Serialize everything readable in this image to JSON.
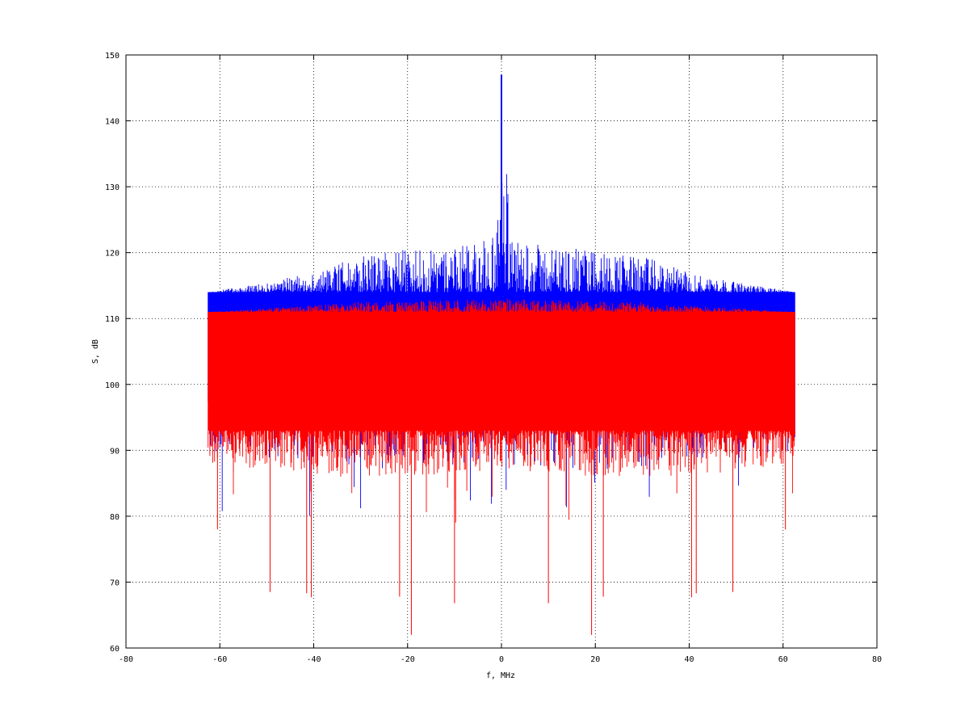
{
  "chart_data": {
    "type": "line",
    "title": "",
    "xlabel": "f, MHz",
    "ylabel": "S, dB",
    "xlim": [
      -80,
      80
    ],
    "ylim": [
      60,
      150
    ],
    "xticks": [
      -80,
      -60,
      -40,
      -20,
      0,
      20,
      40,
      60,
      80
    ],
    "yticks": [
      60,
      70,
      80,
      90,
      100,
      110,
      120,
      130,
      140,
      150
    ],
    "grid": true,
    "legend": "none",
    "x_range": [
      -62.5,
      62.5
    ],
    "series": [
      {
        "color": "#0000ff",
        "style": "dense noisy spectrum",
        "upper_envelope": {
          "x": [
            -62.5,
            -50,
            -40,
            -30,
            -20,
            -10,
            -2,
            0,
            2,
            10,
            20,
            30,
            40,
            50,
            62.5
          ],
          "y": [
            114,
            115.5,
            117,
            119.5,
            120.5,
            121,
            122,
            146.5,
            122,
            121,
            120.5,
            119.5,
            117,
            115.5,
            114
          ]
        },
        "dense_band": [
          104,
          114
        ],
        "lower_envelope": {
          "x": [
            -62.5,
            -40,
            -20,
            0,
            20,
            40,
            62.5
          ],
          "y": [
            90,
            88,
            87,
            88,
            87,
            88,
            90
          ]
        },
        "peak": {
          "x": 0,
          "y": 147
        }
      },
      {
        "color": "#ff0000",
        "style": "dense noisy spectrum",
        "dense_band": [
          93,
          111
        ],
        "upper_envelope": {
          "x": [
            -62.5,
            -30,
            0,
            30,
            62.5
          ],
          "y": [
            111,
            112.5,
            113,
            112.5,
            111
          ]
        },
        "lower_envelope": {
          "x": [
            -62.5,
            -40,
            -20,
            0,
            20,
            40,
            62.5
          ],
          "y": [
            88,
            86,
            86,
            87,
            86,
            86,
            88
          ]
        },
        "deep_dips": [
          {
            "x": -19.2,
            "y": 62
          },
          {
            "x": 19.2,
            "y": 62
          },
          {
            "x": -40.5,
            "y": 67.7
          },
          {
            "x": 40.5,
            "y": 67.7
          },
          {
            "x": -41.5,
            "y": 68.3
          },
          {
            "x": 41.5,
            "y": 68.3
          },
          {
            "x": -49.3,
            "y": 68.5
          },
          {
            "x": 49.3,
            "y": 68.5
          },
          {
            "x": -10,
            "y": 66.8
          },
          {
            "x": 10,
            "y": 66.8
          },
          {
            "x": -21.7,
            "y": 67.8
          },
          {
            "x": 21.7,
            "y": 67.8
          },
          {
            "x": -60.5,
            "y": 78
          },
          {
            "x": 60.5,
            "y": 78
          }
        ]
      }
    ]
  }
}
